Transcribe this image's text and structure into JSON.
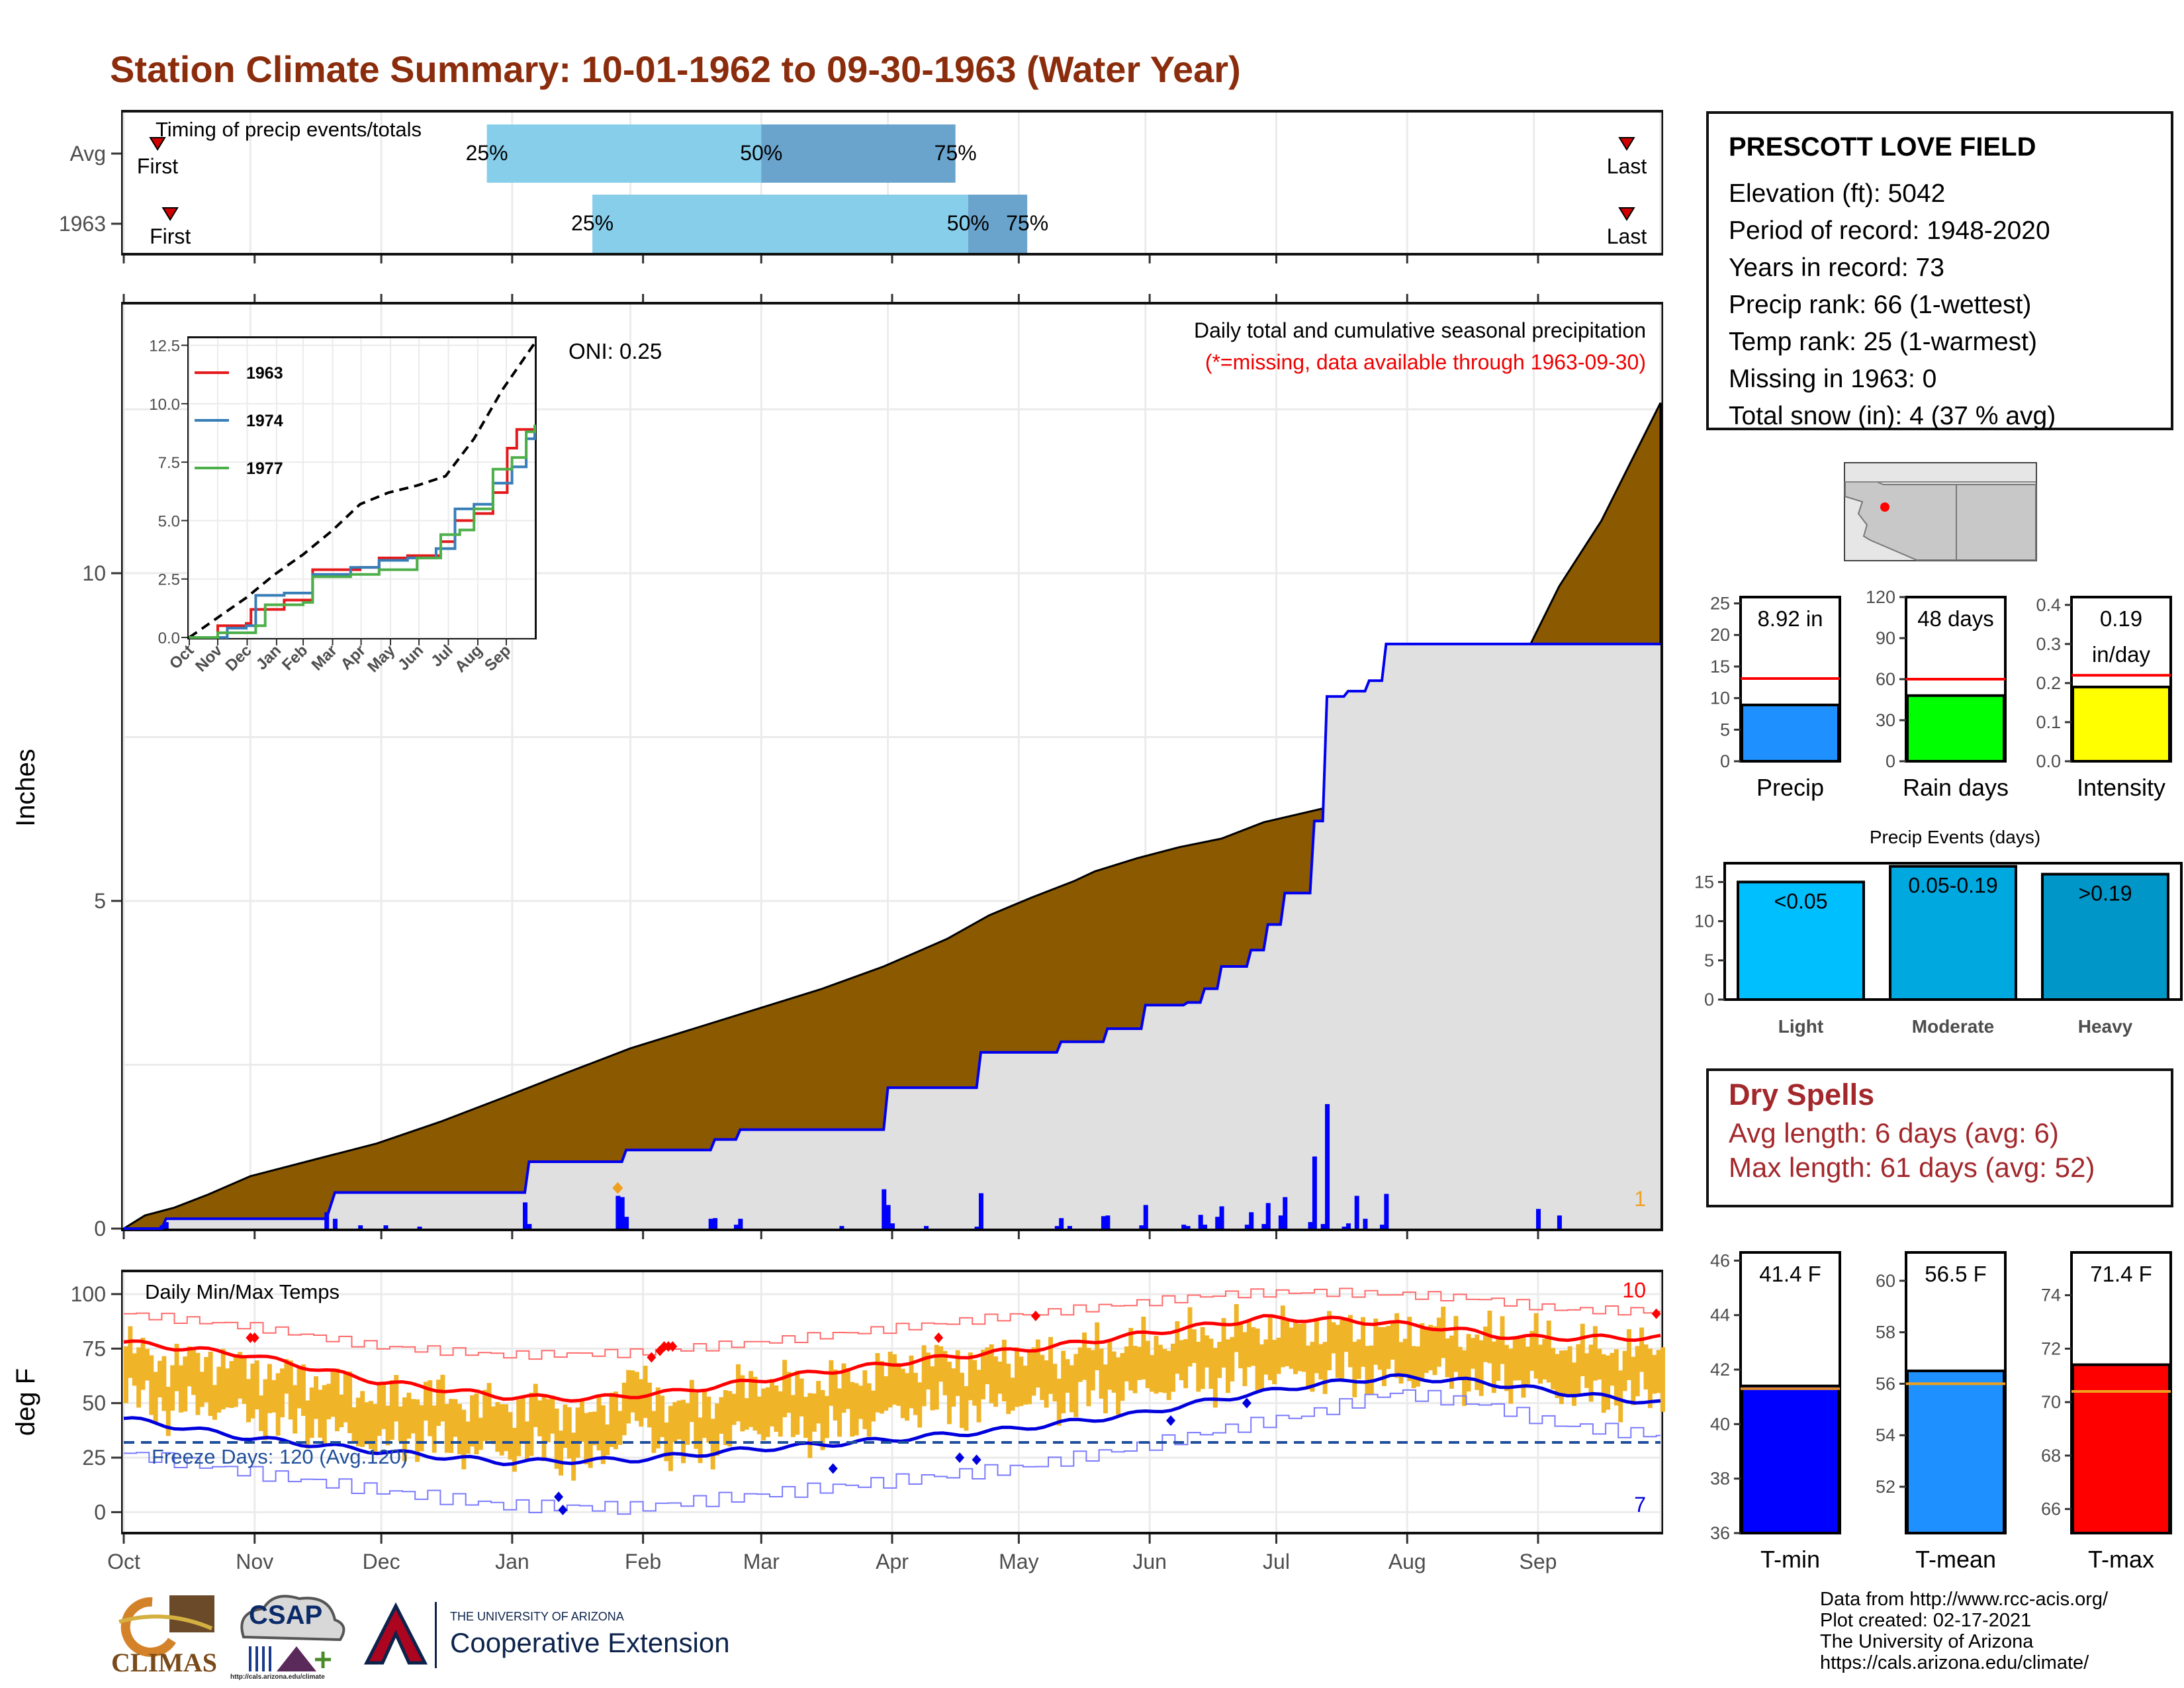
{
  "title": "Station Climate Summary: 10-01-1962 to 09-30-1963 (Water Year)",
  "station": {
    "name": "PRESCOTT LOVE FIELD",
    "lines": [
      "Elevation (ft): 5042",
      "Period of record: 1948-2020",
      "Years in record: 73",
      "Precip rank: 66 (1-wettest)",
      "Temp rank: 25 (1-warmest)",
      "Missing in 1963: 0",
      "Total snow (in): 4 (37 % avg)"
    ]
  },
  "dry_spells": {
    "title": "Dry Spells",
    "avg_line": "Avg length: 6 days (avg: 6)",
    "max_line": "Max length: 61 days (avg: 52)"
  },
  "credits": [
    "Data from http://www.rcc-acis.org/",
    "Plot created: 02-17-2021",
    "The University of Arizona",
    "https://cals.arizona.edu/climate/"
  ],
  "logos": {
    "climas": "CLIMAS",
    "csap": "CSAP",
    "csap_url": "http://cals.arizona.edu/climate",
    "ua_small": "THE UNIVERSITY OF ARIZONA",
    "ua_big": "Cooperative Extension",
    "ua_mark": "A"
  },
  "chart_data": [
    {
      "id": "timing",
      "type": "bar",
      "title": "Timing of precip events/totals",
      "categories": [
        "Avg",
        "1963"
      ],
      "x_ticks": [],
      "rows": [
        {
          "label": "Avg",
          "first_day": 8,
          "q25": 86,
          "q50": 151,
          "q75": 197,
          "last_day": 356,
          "q25_label": "25%",
          "q50_label": "50%",
          "q75_label": "75%",
          "first_label": "First",
          "last_label": "Last"
        },
        {
          "label": "1963",
          "first_day": 11,
          "q25": 111,
          "q50": 200,
          "q75": 214,
          "last_day": 356,
          "q25_label": "25%",
          "q50_label": "50%",
          "q75_label": "75%",
          "first_label": "First",
          "last_label": "Last"
        }
      ],
      "colors": {
        "light": "#87ceeb",
        "dark": "#6aa3cc",
        "marker": "#d00000"
      }
    },
    {
      "id": "precip",
      "type": "area",
      "title": "Daily total and cumulative seasonal precipitation",
      "subtitle": "(*=missing, data available through 1963-09-30)",
      "oni_label": "ONI: 0.25",
      "ylabel": "Inches",
      "ylim": [
        0,
        14.1
      ],
      "y_ticks": [
        0,
        5,
        10
      ],
      "corner_count": "1",
      "avg_cumulative": {
        "day": [
          0,
          5,
          12,
          20,
          30,
          45,
          60,
          75,
          90,
          105,
          120,
          135,
          150,
          165,
          180,
          195,
          205,
          215,
          225,
          230,
          240,
          250,
          260,
          270,
          290,
          320,
          340,
          350,
          364
        ],
        "inches": [
          0,
          0.2,
          0.32,
          0.52,
          0.8,
          1.05,
          1.3,
          1.63,
          2.0,
          2.38,
          2.75,
          3.05,
          3.35,
          3.65,
          4.0,
          4.42,
          4.78,
          5.05,
          5.3,
          5.45,
          5.65,
          5.82,
          5.95,
          6.2,
          6.5,
          7.2,
          9.8,
          10.8,
          12.6
        ]
      },
      "cumulative_1963": {
        "day": [
          0,
          9,
          10,
          48,
          50,
          95,
          96,
          118,
          119,
          139,
          140,
          145,
          146,
          180,
          181,
          202,
          203,
          221,
          222,
          232,
          233,
          241,
          242,
          251,
          252,
          255,
          256,
          259,
          260,
          266,
          267,
          270,
          271,
          274,
          275,
          281,
          282,
          284,
          285,
          289,
          290,
          294,
          295,
          298,
          299,
          339,
          340,
          347,
          348,
          354,
          355,
          364
        ],
        "inches": [
          0,
          0,
          0.15,
          0.15,
          0.55,
          0.55,
          1.02,
          1.02,
          1.2,
          1.2,
          1.36,
          1.36,
          1.51,
          1.51,
          2.15,
          2.15,
          2.69,
          2.69,
          2.85,
          2.85,
          3.05,
          3.05,
          3.41,
          3.41,
          3.45,
          3.45,
          3.66,
          3.66,
          4.0,
          4.0,
          4.25,
          4.25,
          4.64,
          4.64,
          5.12,
          5.12,
          6.22,
          6.22,
          8.12,
          8.12,
          8.2,
          8.2,
          8.36,
          8.36,
          8.92,
          8.92,
          8.92,
          8.92,
          8.92,
          8.92,
          8.92,
          8.92
        ]
      },
      "daily": {
        "day": [
          9,
          10,
          48,
          50,
          56,
          62,
          70,
          95,
          96,
          117,
          118,
          119,
          139,
          140,
          145,
          146,
          170,
          180,
          181,
          182,
          190,
          202,
          203,
          221,
          222,
          224,
          232,
          233,
          241,
          242,
          251,
          252,
          255,
          256,
          259,
          260,
          266,
          267,
          270,
          271,
          274,
          275,
          281,
          282,
          284,
          285,
          289,
          290,
          292,
          294,
          298,
          299,
          335,
          340
        ],
        "inches": [
          0.05,
          0.1,
          0.25,
          0.15,
          0.05,
          0.05,
          0.03,
          0.4,
          0.07,
          0.5,
          0.48,
          0.18,
          0.15,
          0.16,
          0.06,
          0.15,
          0.04,
          0.6,
          0.36,
          0.08,
          0.04,
          0.03,
          0.54,
          0.04,
          0.16,
          0.04,
          0.19,
          0.2,
          0.05,
          0.36,
          0.06,
          0.04,
          0.21,
          0.06,
          0.18,
          0.34,
          0.06,
          0.25,
          0.07,
          0.39,
          0.2,
          0.48,
          0.1,
          1.1,
          0.07,
          1.9,
          0.03,
          0.08,
          0.5,
          0.15,
          0.06,
          0.53,
          0.3,
          0.2
        ]
      },
      "snow_days": [
        117
      ],
      "snow_color": "#f0a020"
    },
    {
      "id": "cumulative_inset",
      "type": "line",
      "xlabel": "",
      "ylabel": "",
      "ylim": [
        0,
        12.8
      ],
      "y_ticks": [
        "0.0",
        "2.5",
        "5.0",
        "7.5",
        "10.0",
        "12.5"
      ],
      "x_ticks": [
        "Oct",
        "Nov",
        "Dec",
        "Jan",
        "Feb",
        "Mar",
        "Apr",
        "May",
        "Jun",
        "Jul",
        "Aug",
        "Sep"
      ],
      "avg": {
        "day": [
          0,
          30,
          60,
          90,
          120,
          150,
          180,
          210,
          240,
          270,
          300,
          330,
          364
        ],
        "inches": [
          0,
          0.85,
          1.7,
          2.7,
          3.55,
          4.55,
          5.7,
          6.2,
          6.5,
          6.9,
          8.5,
          10.6,
          12.6
        ]
      },
      "series": [
        {
          "name": "1963",
          "color": "#e41a1c",
          "day": [
            0,
            30,
            60,
            65,
            100,
            130,
            180,
            200,
            230,
            250,
            265,
            280,
            300,
            320,
            335,
            345,
            364
          ],
          "inches": [
            0,
            0.5,
            0.6,
            1.2,
            1.6,
            2.9,
            3.0,
            3.4,
            3.5,
            3.5,
            4.1,
            5.0,
            5.3,
            6.2,
            8.1,
            8.9,
            9.0
          ]
        },
        {
          "name": "1974",
          "color": "#377eb8",
          "day": [
            0,
            40,
            60,
            70,
            100,
            130,
            170,
            200,
            230,
            260,
            280,
            300,
            320,
            340,
            355,
            364
          ],
          "inches": [
            0,
            0.4,
            0.5,
            1.8,
            1.9,
            2.7,
            3.0,
            3.3,
            3.4,
            3.8,
            5.5,
            5.7,
            6.6,
            7.3,
            8.5,
            9.1
          ]
        },
        {
          "name": "1977",
          "color": "#4daf4a",
          "day": [
            0,
            30,
            70,
            80,
            120,
            130,
            170,
            200,
            240,
            265,
            285,
            300,
            320,
            340,
            355,
            364
          ],
          "inches": [
            0,
            0.2,
            0.5,
            1.4,
            1.5,
            2.6,
            2.7,
            2.9,
            3.4,
            4.4,
            4.6,
            5.5,
            7.2,
            7.7,
            8.8,
            9.1
          ]
        }
      ]
    },
    {
      "id": "temps",
      "type": "line",
      "title": "Daily Min/Max Temps",
      "ylabel": "deg F",
      "ylim": [
        -9,
        110
      ],
      "y_ticks": [
        0,
        25,
        50,
        75,
        100
      ],
      "x_ticks": [
        "Oct",
        "Nov",
        "Dec",
        "Jan",
        "Feb",
        "Mar",
        "Apr",
        "May",
        "Jun",
        "Jul",
        "Aug",
        "Sep"
      ],
      "month_start_day": [
        0,
        31,
        61,
        92,
        123,
        151,
        182,
        212,
        243,
        273,
        304,
        335
      ],
      "freeze_line": 32,
      "freeze_label": "Freeze Days: 120 (Avg.120)",
      "record_high_count": "10",
      "record_low_count": "7",
      "avg_max": {
        "day": [
          0,
          30,
          60,
          90,
          110,
          130,
          160,
          190,
          220,
          250,
          270,
          290,
          310,
          330,
          364
        ],
        "temp": [
          78,
          72,
          60,
          53,
          52,
          55,
          63,
          70,
          76,
          84,
          89,
          88,
          85,
          80,
          80
        ]
      },
      "avg_min": {
        "day": [
          0,
          30,
          60,
          90,
          120,
          150,
          180,
          210,
          240,
          260,
          280,
          300,
          320,
          340,
          364
        ],
        "temp": [
          43,
          34,
          28,
          23,
          24,
          29,
          33,
          38,
          45,
          52,
          58,
          62,
          60,
          55,
          50
        ]
      },
      "record_max": {
        "day": [
          0,
          30,
          60,
          90,
          120,
          150,
          180,
          210,
          240,
          260,
          280,
          300,
          320,
          340,
          364
        ],
        "temp": [
          91,
          85,
          76,
          72,
          73,
          78,
          84,
          90,
          96,
          100,
          101,
          100,
          98,
          93,
          92
        ]
      },
      "record_min": {
        "day": [
          0,
          30,
          60,
          90,
          120,
          150,
          180,
          210,
          240,
          260,
          280,
          300,
          320,
          340,
          364
        ],
        "temp": [
          27,
          18,
          10,
          3,
          2,
          8,
          14,
          20,
          30,
          38,
          45,
          55,
          50,
          40,
          35
        ]
      },
      "daily_mean": {
        "day": [
          0,
          10,
          20,
          30,
          40,
          50,
          60,
          70,
          80,
          90,
          100,
          110,
          120,
          130,
          140,
          150,
          160,
          170,
          180,
          190,
          200,
          210,
          220,
          230,
          240,
          250,
          260,
          270,
          280,
          290,
          300,
          310,
          320,
          330,
          340,
          350,
          364
        ],
        "temp": [
          65,
          58,
          60,
          55,
          52,
          48,
          42,
          45,
          40,
          38,
          40,
          32,
          52,
          38,
          42,
          50,
          47,
          50,
          55,
          60,
          58,
          62,
          60,
          65,
          66,
          70,
          72,
          74,
          73,
          74,
          72,
          74,
          70,
          71,
          66,
          64,
          64
        ]
      },
      "daily_range": 22,
      "record_highs": [
        {
          "day": 30,
          "temp": 80
        },
        {
          "day": 31,
          "temp": 80
        },
        {
          "day": 125,
          "temp": 71
        },
        {
          "day": 127,
          "temp": 74
        },
        {
          "day": 128,
          "temp": 76
        },
        {
          "day": 129,
          "temp": 76
        },
        {
          "day": 130,
          "temp": 76
        },
        {
          "day": 193,
          "temp": 80
        },
        {
          "day": 216,
          "temp": 90
        },
        {
          "day": 363,
          "temp": 91
        }
      ],
      "record_lows": [
        {
          "day": 103,
          "temp": 7
        },
        {
          "day": 104,
          "temp": 1
        },
        {
          "day": 168,
          "temp": 20
        },
        {
          "day": 198,
          "temp": 25
        },
        {
          "day": 202,
          "temp": 24
        },
        {
          "day": 248,
          "temp": 42
        },
        {
          "day": 266,
          "temp": 50
        }
      ],
      "colors": {
        "band": "#f0b428",
        "avg_max": "#ff0000",
        "avg_min": "#0000dd",
        "freeze": "#1f4e9c",
        "high_label": "#ff0000",
        "low_label": "#0000dd"
      }
    },
    {
      "id": "precip_total",
      "type": "bar",
      "categories": [
        "Precip"
      ],
      "values": [
        8.92
      ],
      "avg": 13.1,
      "value_label": "8.92 in",
      "ylim": [
        0,
        26
      ],
      "y_ticks": [
        0,
        5,
        10,
        15,
        20,
        25
      ],
      "color": "#1e90ff"
    },
    {
      "id": "rain_days",
      "type": "bar",
      "categories": [
        "Rain days"
      ],
      "values": [
        48
      ],
      "avg": 60,
      "value_label": "48 days",
      "ylim": [
        0,
        120
      ],
      "y_ticks": [
        0,
        30,
        60,
        90,
        120
      ],
      "color": "#00ff00"
    },
    {
      "id": "intensity",
      "type": "bar",
      "categories": [
        "Intensity"
      ],
      "values": [
        0.19
      ],
      "avg": 0.22,
      "value_label": [
        "0.19",
        "in/day"
      ],
      "ylim": [
        0,
        0.42
      ],
      "y_ticks": [
        "0.0",
        "0.1",
        "0.2",
        "0.3",
        "0.4"
      ],
      "color": "#ffff00"
    },
    {
      "id": "precip_events",
      "type": "bar",
      "title": "Precip Events (days)",
      "categories": [
        "Light",
        "Moderate",
        "Heavy"
      ],
      "values": [
        15,
        17,
        16
      ],
      "labels": [
        "<0.05",
        "0.05-0.19",
        ">0.19"
      ],
      "ylim": [
        0,
        17.4
      ],
      "y_ticks": [
        0,
        5,
        10,
        15
      ],
      "colors": [
        "#00bfff",
        "#00a8e0",
        "#0096c7"
      ]
    },
    {
      "id": "temp_tmin",
      "type": "bar",
      "categories": [
        "T-min"
      ],
      "values": [
        41.4
      ],
      "avg": 41.3,
      "value_label": "41.4 F",
      "ylim": [
        36,
        46.3
      ],
      "y_ticks": [
        36,
        38,
        40,
        42,
        44,
        46
      ],
      "color": "#0000ff"
    },
    {
      "id": "temp_tmean",
      "type": "bar",
      "categories": [
        "T-mean"
      ],
      "values": [
        56.5
      ],
      "avg": 56.0,
      "value_label": "56.5 F",
      "ylim": [
        50.2,
        61.1
      ],
      "y_ticks": [
        52,
        54,
        56,
        58,
        60
      ],
      "color": "#1e90ff"
    },
    {
      "id": "temp_tmax",
      "type": "bar",
      "categories": [
        "T-max"
      ],
      "values": [
        71.4
      ],
      "avg": 70.4,
      "value_label": "71.4 F",
      "ylim": [
        65.1,
        75.6
      ],
      "y_ticks": [
        66,
        68,
        70,
        72,
        74
      ],
      "color": "#ff0000"
    }
  ]
}
